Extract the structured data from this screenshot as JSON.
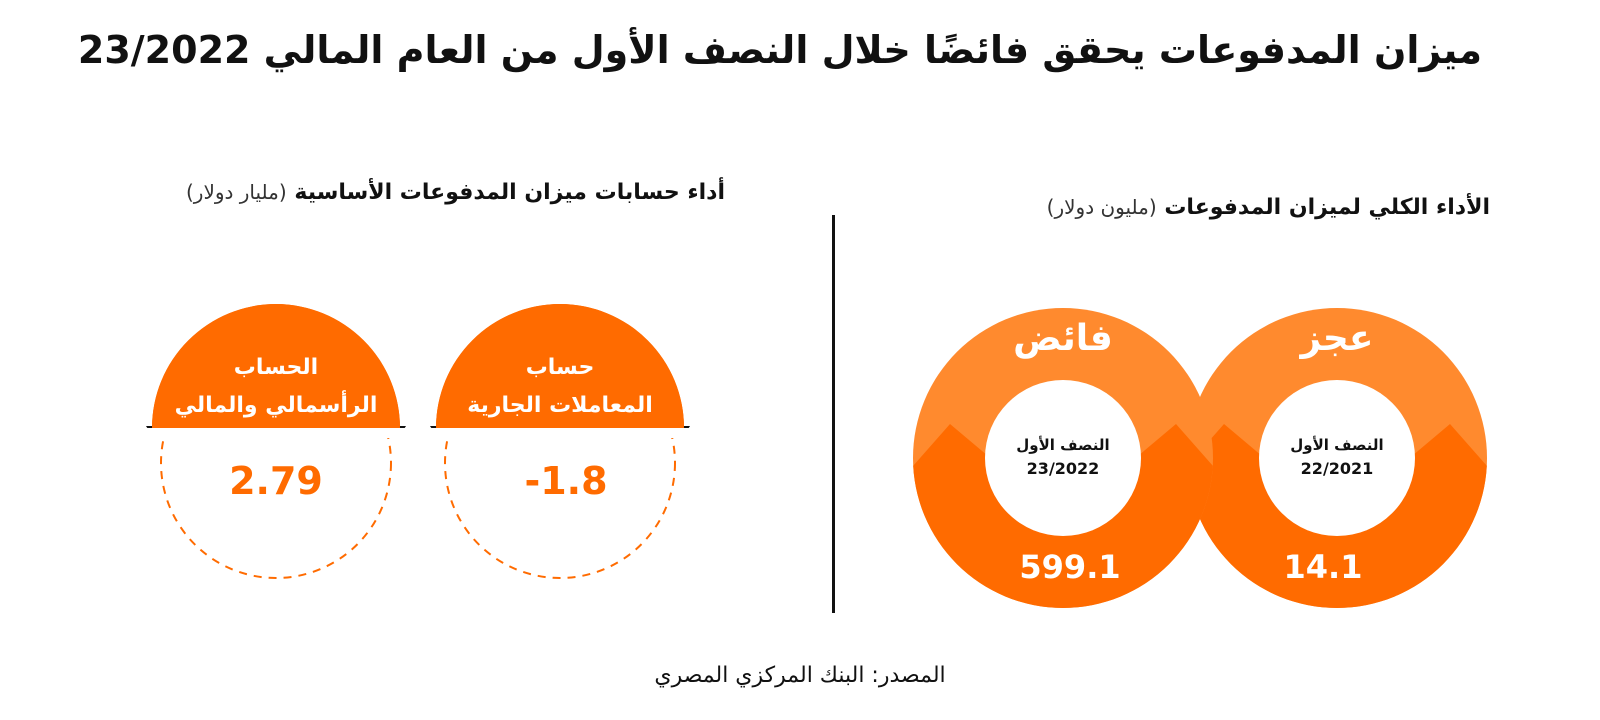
{
  "title": "ميزان المدفوعات يحقق فائضًا خلال النصف الأول من العام المالي 23/2022",
  "source": "المصدر: البنك المركزي المصري",
  "colors": {
    "orange": "#ff6b00",
    "light_orange": "#ff8a2e",
    "text": "#111111"
  },
  "chart_data": [
    {
      "type": "table",
      "title": "الأداء الكلي لميزان المدفوعات",
      "unit": "(مليون دولار)",
      "items": [
        {
          "label": "عجز",
          "period_line1": "النصف الأول",
          "period_line2": "22/2021",
          "value_text": "14.1"
        },
        {
          "label": "فائض",
          "period_line1": "النصف الأول",
          "period_line2": "23/2022",
          "value_text": "599.1"
        }
      ]
    },
    {
      "type": "table",
      "title": "أداء حسابات ميزان المدفوعات الأساسية",
      "unit": "(مليار دولار)",
      "items": [
        {
          "label_line1": "حساب",
          "label_line2": "المعاملات الجارية",
          "value_text": "-1.8"
        },
        {
          "label_line1": "الحساب",
          "label_line2": "الرأسمالي والمالي",
          "value_text": "2.79"
        }
      ]
    }
  ]
}
